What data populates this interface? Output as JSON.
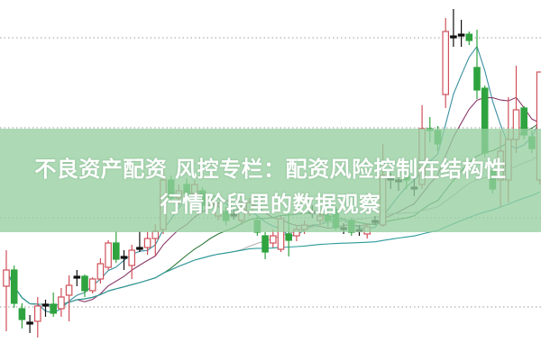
{
  "article": {
    "title_line1": "不良资产配资 风控专栏：配资风险控制在结构性",
    "title_line2": "行情阶段里的数据观察"
  },
  "colors": {
    "up": "#d0505a",
    "down": "#2fa33f",
    "doji": "#111111",
    "banner": "#96d0a0",
    "ma5": "#3a8fa0",
    "ma10": "#8a3a6a",
    "ma20": "#2f7a3a",
    "ma30": "#b0b0b0",
    "ma60": "#2a9a9a"
  },
  "chart_data": {
    "type": "candlestick",
    "title": "",
    "xlabel": "",
    "ylabel": "",
    "grid": "horizontal dotted",
    "legend": "none",
    "moving_averages": [
      5,
      10,
      20,
      30,
      60
    ],
    "ohlc": [
      [
        8.2,
        12.2,
        3.2,
        10.0
      ],
      [
        10.0,
        10.5,
        5.8,
        6.3
      ],
      [
        5.7,
        6.3,
        3.5,
        4.5
      ],
      [
        4.2,
        5.0,
        3.0,
        4.2
      ],
      [
        4.3,
        7.0,
        2.5,
        6.0
      ],
      [
        6.2,
        6.7,
        4.8,
        6.2
      ],
      [
        6.2,
        7.5,
        4.8,
        5.2
      ],
      [
        5.7,
        8.0,
        4.8,
        7.0
      ],
      [
        7.2,
        9.4,
        4.3,
        8.3
      ],
      [
        9.3,
        10.0,
        8.2,
        9.3
      ],
      [
        9.3,
        9.5,
        7.0,
        7.7
      ],
      [
        7.7,
        9.2,
        7.4,
        9.0
      ],
      [
        9.0,
        11.3,
        8.5,
        10.7
      ],
      [
        10.3,
        13.3,
        10.0,
        13.0
      ],
      [
        13.0,
        14.3,
        10.8,
        11.2
      ],
      [
        11.5,
        12.2,
        10.0,
        11.5
      ],
      [
        10.5,
        12.8,
        9.0,
        12.2
      ],
      [
        12.5,
        14.3,
        12.0,
        12.5
      ],
      [
        12.5,
        14.3,
        11.7,
        13.5
      ],
      [
        13.5,
        15.1,
        11.5,
        14.3
      ],
      [
        14.5,
        22.2,
        14.0,
        20.0
      ],
      [
        20.0,
        20.5,
        17.5,
        18.0
      ],
      [
        18.0,
        19.5,
        17.2,
        18.8
      ],
      [
        19.5,
        20.2,
        17.8,
        18.5
      ],
      [
        18.5,
        20.0,
        18.0,
        19.5
      ],
      [
        18.8,
        19.2,
        16.5,
        17.2
      ],
      [
        17.2,
        18.5,
        16.8,
        17.8
      ],
      [
        16.0,
        17.5,
        15.5,
        17.0
      ],
      [
        16.5,
        17.0,
        15.0,
        15.5
      ],
      [
        16.2,
        16.8,
        15.6,
        16.2
      ],
      [
        15.5,
        17.2,
        15.0,
        16.8
      ],
      [
        16.4,
        18.0,
        16.0,
        17.5
      ],
      [
        15.5,
        16.0,
        13.8,
        14.2
      ],
      [
        13.8,
        14.2,
        11.2,
        12.0
      ],
      [
        13.0,
        14.5,
        12.5,
        13.8
      ],
      [
        12.3,
        16.0,
        12.0,
        15.7
      ],
      [
        14.0,
        17.0,
        11.5,
        13.3
      ],
      [
        13.8,
        15.0,
        13.2,
        14.5
      ],
      [
        14.5,
        15.5,
        14.0,
        15.0
      ],
      [
        16.5,
        17.2,
        15.8,
        16.5
      ],
      [
        15.5,
        16.5,
        15.0,
        16.0
      ],
      [
        16.0,
        16.8,
        14.8,
        15.5
      ],
      [
        16.7,
        17.0,
        14.4,
        14.7
      ],
      [
        14.7,
        15.2,
        14.0,
        14.7
      ],
      [
        15.5,
        15.8,
        13.8,
        14.2
      ],
      [
        14.5,
        15.0,
        13.8,
        14.5
      ],
      [
        14.0,
        15.2,
        13.5,
        14.8
      ],
      [
        15.5,
        16.0,
        15.0,
        15.5
      ],
      [
        15.0,
        24.0,
        14.8,
        20.5
      ],
      [
        20.2,
        20.8,
        19.0,
        20.2
      ],
      [
        20.0,
        21.0,
        18.8,
        20.0
      ],
      [
        20.5,
        21.0,
        19.0,
        20.0
      ],
      [
        19.2,
        20.5,
        18.2,
        19.2
      ],
      [
        19.5,
        28.3,
        19.0,
        25.7
      ],
      [
        25.7,
        27.0,
        24.2,
        25.5
      ],
      [
        25.5,
        26.0,
        23.2,
        24.0
      ],
      [
        29.5,
        38.0,
        28.0,
        36.5
      ],
      [
        36.0,
        39.0,
        34.8,
        36.0
      ],
      [
        36.2,
        37.8,
        34.8,
        36.2
      ],
      [
        36.2,
        36.5,
        35.0,
        35.5
      ],
      [
        32.5,
        36.7,
        29.0,
        30.0
      ],
      [
        30.2,
        30.5,
        22.5,
        23.0
      ],
      [
        21.0,
        22.0,
        18.5,
        19.0
      ],
      [
        20.0,
        25.5,
        17.0,
        23.2
      ],
      [
        20.0,
        29.2,
        17.5,
        24.5
      ],
      [
        24.5,
        32.7,
        23.0,
        27.8
      ],
      [
        28.0,
        28.2,
        24.5,
        25.0
      ],
      [
        24.8,
        25.5,
        23.0,
        23.5
      ],
      [
        20.0,
        32.0,
        19.5,
        32.0
      ]
    ]
  }
}
